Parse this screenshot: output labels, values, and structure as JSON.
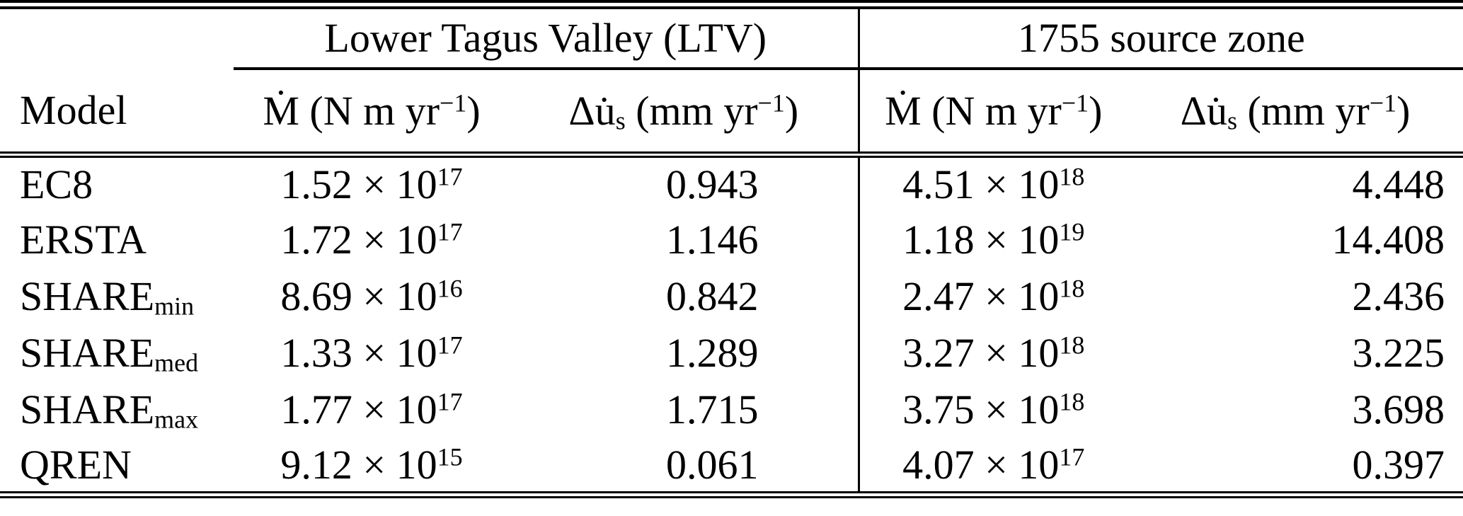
{
  "table": {
    "group_headers": {
      "ltv": "Lower Tagus Valley (LTV)",
      "source_zone": "1755 source zone"
    },
    "columns": {
      "model": "Model",
      "moment_prefix": "Ṁ (N m yr",
      "moment_sup": "−1",
      "moment_suffix": ")",
      "slip_prefix": "Δu̇",
      "slip_sub": "s",
      "slip_mid": " (mm yr",
      "slip_sup": "−1",
      "slip_suffix": ")"
    },
    "rows": [
      {
        "model": "EC8",
        "model_sub": "",
        "ltv_moment_mant": "1.52 × 10",
        "ltv_moment_exp": "17",
        "ltv_slip": "0.943",
        "sz_moment_mant": "4.51 × 10",
        "sz_moment_exp": "18",
        "sz_slip": "4.448"
      },
      {
        "model": "ERSTA",
        "model_sub": "",
        "ltv_moment_mant": "1.72 × 10",
        "ltv_moment_exp": "17",
        "ltv_slip": "1.146",
        "sz_moment_mant": "1.18 × 10",
        "sz_moment_exp": "19",
        "sz_slip": "14.408"
      },
      {
        "model": "SHARE",
        "model_sub": "min",
        "ltv_moment_mant": "8.69 × 10",
        "ltv_moment_exp": "16",
        "ltv_slip": "0.842",
        "sz_moment_mant": "2.47 × 10",
        "sz_moment_exp": "18",
        "sz_slip": "2.436"
      },
      {
        "model": "SHARE",
        "model_sub": "med",
        "ltv_moment_mant": "1.33 × 10",
        "ltv_moment_exp": "17",
        "ltv_slip": "1.289",
        "sz_moment_mant": "3.27 × 10",
        "sz_moment_exp": "18",
        "sz_slip": "3.225"
      },
      {
        "model": "SHARE",
        "model_sub": "max",
        "ltv_moment_mant": "1.77 × 10",
        "ltv_moment_exp": "17",
        "ltv_slip": "1.715",
        "sz_moment_mant": "3.75 × 10",
        "sz_moment_exp": "18",
        "sz_slip": "3.698"
      },
      {
        "model": "QREN",
        "model_sub": "",
        "ltv_moment_mant": "9.12 × 10",
        "ltv_moment_exp": "15",
        "ltv_slip": "0.061",
        "sz_moment_mant": "4.07 × 10",
        "sz_moment_exp": "17",
        "sz_slip": "0.397"
      }
    ]
  },
  "colors": {
    "text": "#000000",
    "rule": "#000000",
    "background": "#ffffff"
  }
}
